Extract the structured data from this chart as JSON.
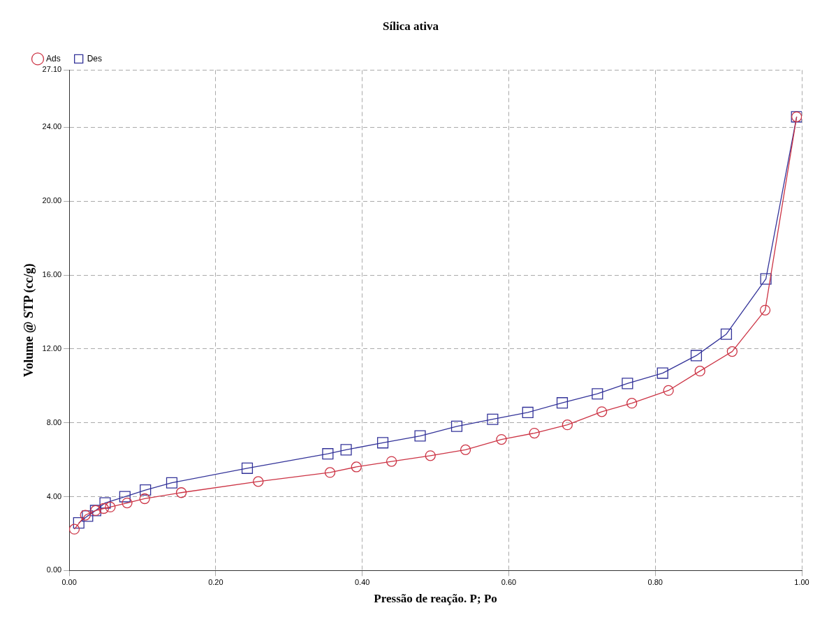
{
  "chart_data": {
    "type": "line",
    "title": "Sílica ativa",
    "xlabel": "Pressão de reação. P; Po",
    "ylabel": "Volume @ STP (cc/g)",
    "grid": true,
    "legend": "top left",
    "line_style": "solid",
    "xlim": [
      0,
      1
    ],
    "xticks": [
      {
        "value": 0,
        "label": "0.00"
      },
      {
        "value": 0.2,
        "label": "0.20"
      },
      {
        "value": 0.4,
        "label": "0.40"
      },
      {
        "value": 0.6,
        "label": "0.60"
      },
      {
        "value": 0.8,
        "label": "0.80"
      },
      {
        "value": 1,
        "label": "1.00"
      }
    ],
    "ylim": [
      0,
      27.1
    ],
    "yticks": [
      {
        "value": 0,
        "label": "0.00"
      },
      {
        "value": 4,
        "label": "4.00"
      },
      {
        "value": 8,
        "label": "8.00"
      },
      {
        "value": 12,
        "label": "12.00"
      },
      {
        "value": 16,
        "label": "16.00"
      },
      {
        "value": 20,
        "label": "20.00"
      },
      {
        "value": 24,
        "label": "24.00"
      },
      {
        "value": 27.1,
        "label": "27.10"
      }
    ],
    "series": [
      {
        "name": "Ads",
        "color": "#cc3344",
        "marker": "circle",
        "x": [
          0.007,
          0.022,
          0.036,
          0.047,
          0.056,
          0.079,
          0.103,
          0.153,
          0.258,
          0.356,
          0.392,
          0.44,
          0.493,
          0.541,
          0.59,
          0.635,
          0.68,
          0.727,
          0.768,
          0.818,
          0.861,
          0.905,
          0.95,
          0.993
        ],
        "values": [
          2.24,
          3.0,
          3.25,
          3.36,
          3.44,
          3.66,
          3.89,
          4.22,
          4.82,
          5.31,
          5.61,
          5.91,
          6.22,
          6.54,
          7.1,
          7.44,
          7.89,
          8.6,
          9.06,
          9.75,
          10.8,
          11.86,
          14.1,
          24.57
        ]
      },
      {
        "name": "Des",
        "color": "#333399",
        "marker": "square",
        "x": [
          0.993,
          0.951,
          0.897,
          0.856,
          0.81,
          0.762,
          0.721,
          0.673,
          0.626,
          0.578,
          0.529,
          0.479,
          0.428,
          0.378,
          0.353,
          0.243,
          0.14,
          0.104,
          0.076,
          0.049,
          0.036,
          0.025,
          0.013
        ],
        "values": [
          24.57,
          15.79,
          12.8,
          11.64,
          10.69,
          10.13,
          9.57,
          9.08,
          8.56,
          8.19,
          7.81,
          7.29,
          6.92,
          6.54,
          6.32,
          5.54,
          4.75,
          4.36,
          4.0,
          3.66,
          3.25,
          2.95,
          2.58
        ]
      }
    ]
  }
}
